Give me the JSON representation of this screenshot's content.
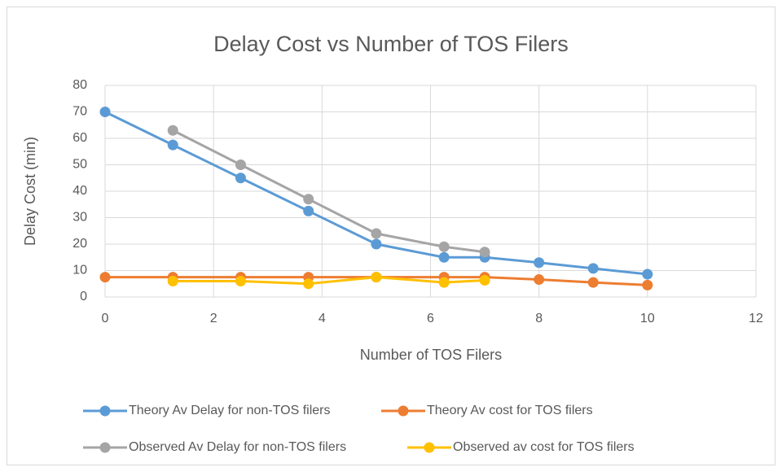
{
  "chart_data": {
    "type": "line",
    "title": "Delay Cost vs Number of TOS Filers",
    "x_label": "Number of TOS Filers",
    "y_label": "Delay Cost (min)",
    "xlim": [
      0,
      12
    ],
    "xticks": [
      0,
      2,
      4,
      6,
      8,
      10,
      12
    ],
    "ylim": [
      0,
      80
    ],
    "yticks": [
      0,
      10,
      20,
      30,
      40,
      50,
      60,
      70,
      80
    ],
    "grid": true,
    "legend": "bottom",
    "series": [
      {
        "name": "Theory Av Delay for non-TOS filers",
        "color": "#5b9bd5",
        "x": [
          0,
          1.25,
          2.5,
          3.75,
          5,
          6.25,
          7,
          8,
          9,
          10
        ],
        "values": [
          70,
          57.5,
          45,
          32.5,
          20,
          15,
          15,
          13,
          10.8,
          8.6
        ]
      },
      {
        "name": "Theory Av cost for TOS filers",
        "color": "#ed7d31",
        "x": [
          0,
          1.25,
          2.5,
          3.75,
          5,
          6.25,
          7,
          8,
          9,
          10
        ],
        "values": [
          7.5,
          7.5,
          7.5,
          7.5,
          7.5,
          7.5,
          7.5,
          6.6,
          5.5,
          4.5
        ]
      },
      {
        "name": "Observed Av Delay for non-TOS filers",
        "color": "#a5a5a5",
        "x": [
          1.25,
          2.5,
          3.75,
          5,
          6.25,
          7
        ],
        "values": [
          63,
          50,
          37,
          24,
          19,
          17
        ]
      },
      {
        "name": "Observed av cost for TOS filers",
        "color": "#ffc000",
        "x": [
          1.25,
          2.5,
          3.75,
          5,
          6.25,
          7
        ],
        "values": [
          6,
          6,
          5,
          7.5,
          5.5,
          6.3
        ]
      }
    ]
  }
}
